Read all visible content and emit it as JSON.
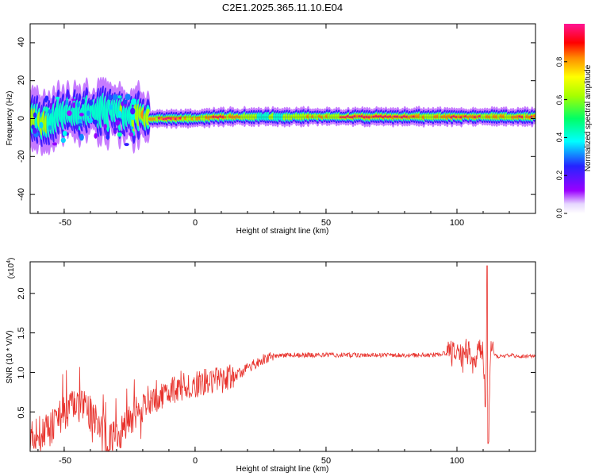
{
  "title": "C2E1.2025.365.11.10.E04",
  "top_panel": {
    "xlabel": "Height of straight line (km)",
    "ylabel": "Frequency (Hz)",
    "xlim": [
      -63,
      130
    ],
    "ylim": [
      -50,
      50
    ],
    "xticks": [
      "-50",
      "0",
      "50",
      "100"
    ],
    "xtick_values": [
      -50,
      0,
      50,
      100
    ],
    "yticks": [
      "-40",
      "-20",
      "0",
      "20",
      "40"
    ],
    "ytick_values": [
      -40,
      -20,
      0,
      20,
      40
    ]
  },
  "colorbar": {
    "label": "Normalized spectral amplitude",
    "ticks": [
      "0.0",
      "0.2",
      "0.4",
      "0.6",
      "0.8"
    ],
    "tick_values": [
      0.0,
      0.2,
      0.4,
      0.6,
      0.8
    ],
    "range": [
      0,
      1
    ]
  },
  "bottom_panel": {
    "xlabel": "Height of straight line (km)",
    "ylabel": "SNR (10 * V/V)",
    "exponent_label": "(x10",
    "exponent_power": "4",
    "exponent_close": ")",
    "xlim": [
      -63,
      130
    ],
    "ylim": [
      0,
      2.4
    ],
    "xticks": [
      "-50",
      "0",
      "50",
      "100"
    ],
    "xtick_values": [
      -50,
      0,
      50,
      100
    ],
    "yticks": [
      "0.5",
      "1.0",
      "1.5",
      "2.0"
    ],
    "ytick_values": [
      0.5,
      1.0,
      1.5,
      2.0
    ],
    "line_color": "#e8322c"
  },
  "chart_data": [
    {
      "type": "heatmap",
      "title": "C2E1.2025.365.11.10.E04",
      "xlabel": "Height of straight line (km)",
      "ylabel": "Frequency (Hz)",
      "colorbar_label": "Normalized spectral amplitude",
      "xlim": [
        -63,
        130
      ],
      "ylim": [
        -50,
        50
      ],
      "description_points": {
        "x": [
          -60,
          -50,
          -40,
          -30,
          -20,
          -10,
          0,
          10,
          20,
          30,
          40,
          50,
          60,
          70,
          80,
          90,
          100,
          110,
          120,
          130
        ],
        "center_frequency_hz": [
          -2,
          2,
          2,
          5,
          0,
          0,
          0,
          1,
          1,
          1,
          1,
          1,
          1,
          1,
          1,
          1,
          1,
          1,
          1,
          1
        ],
        "peak_amplitude": [
          0.6,
          0.5,
          0.5,
          0.5,
          0.8,
          1.0,
          0.8,
          1.0,
          0.7,
          0.6,
          0.7,
          0.8,
          1.0,
          1.0,
          1.0,
          0.7,
          1.0,
          0.9,
          0.8,
          1.0
        ]
      }
    },
    {
      "type": "line",
      "title": "",
      "xlabel": "Height of straight line (km)",
      "ylabel": "SNR (10 * V/V)",
      "y_scale": "x10^4",
      "xlim": [
        -63,
        130
      ],
      "ylim": [
        0,
        2.4
      ],
      "series": [
        {
          "name": "SNR",
          "x": [
            -63,
            -55,
            -50,
            -45,
            -40,
            -35,
            -30,
            -25,
            -20,
            -15,
            -10,
            -5,
            0,
            5,
            10,
            15,
            20,
            25,
            30,
            35,
            40,
            50,
            60,
            70,
            80,
            90,
            97,
            100,
            104,
            107,
            110,
            111,
            111.5,
            112,
            113,
            115,
            120,
            125,
            130
          ],
          "y": [
            0.15,
            0.25,
            0.45,
            0.55,
            0.45,
            0.15,
            0.1,
            0.35,
            0.55,
            0.65,
            0.75,
            0.82,
            0.85,
            0.9,
            0.88,
            0.95,
            1.05,
            1.15,
            1.2,
            1.22,
            1.22,
            1.22,
            1.22,
            1.22,
            1.22,
            1.22,
            1.24,
            1.28,
            1.25,
            1.2,
            1.3,
            0.4,
            2.35,
            0.1,
            1.3,
            1.2,
            1.22,
            1.2,
            1.21
          ]
        }
      ]
    }
  ]
}
